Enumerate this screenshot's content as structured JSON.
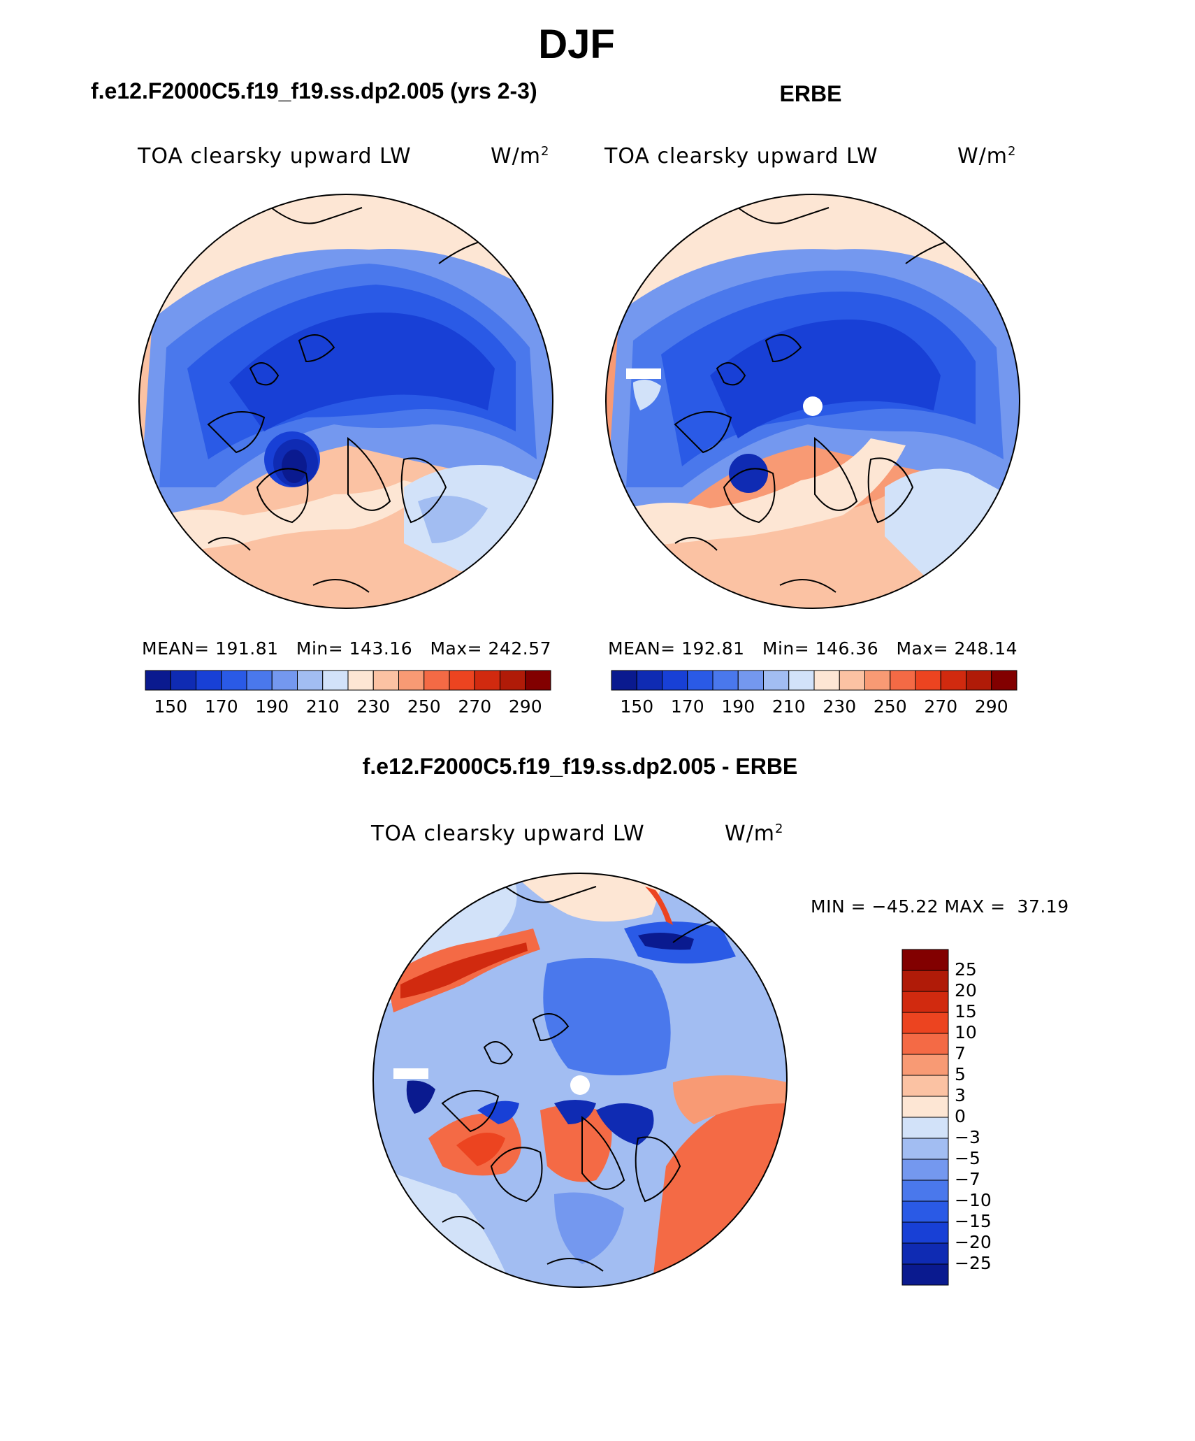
{
  "figure": {
    "season_title": "DJF",
    "diff_panel_title": "f.e12.F2000C5.f19_f19.ss.dp2.005 - ERBE"
  },
  "colors": {
    "abs_colorbar": [
      "#0a1a8f",
      "#0f2bb3",
      "#1840d6",
      "#2a5ae6",
      "#4a78ec",
      "#7498ef",
      "#a2bdf2",
      "#d2e2f9",
      "#fde6d4",
      "#fbc2a3",
      "#f89a74",
      "#f46a45",
      "#ec4420",
      "#d12a0f",
      "#b01b08",
      "#820000"
    ],
    "diff_colorbar": [
      "#0a1a8f",
      "#0f2bb3",
      "#1840d6",
      "#2a5ae6",
      "#4a78ec",
      "#7498ef",
      "#a2bdf2",
      "#d2e2f9",
      "#fde6d4",
      "#fbc2a3",
      "#f89a74",
      "#f46a45",
      "#ec4420",
      "#d12a0f",
      "#b01b08",
      "#820000"
    ]
  },
  "chart_data": [
    {
      "type": "heatmap",
      "projection": "north polar stereographic",
      "title": "f.e12.F2000C5.f19_f19.ss.dp2.005 (yrs 2-3)",
      "variable": "TOA clearsky upward LW",
      "units": "W/m",
      "units_sup": "2",
      "stats": {
        "mean": 191.81,
        "min": 143.16,
        "max": 242.57
      },
      "stats_text": "MEAN= 191.81   Min= 143.16   Max= 242.57",
      "colorbar_ticks": [
        "150",
        "170",
        "190",
        "210",
        "230",
        "250",
        "270",
        "290"
      ]
    },
    {
      "type": "heatmap",
      "projection": "north polar stereographic",
      "title": "ERBE",
      "variable": "TOA clearsky upward LW",
      "units": "W/m",
      "units_sup": "2",
      "stats": {
        "mean": 192.81,
        "min": 146.36,
        "max": 248.14
      },
      "stats_text": "MEAN= 192.81   Min= 146.36   Max= 248.14",
      "colorbar_ticks": [
        "150",
        "170",
        "190",
        "210",
        "230",
        "250",
        "270",
        "290"
      ]
    },
    {
      "type": "heatmap",
      "projection": "north polar stereographic",
      "title": "f.e12.F2000C5.f19_f19.ss.dp2.005 - ERBE",
      "variable": "TOA clearsky upward LW",
      "units": "W/m",
      "units_sup": "2",
      "stats": {
        "min": -45.22,
        "max": 37.19
      },
      "stats_text": "MIN = −45.22 MAX =  37.19",
      "colorbar_ticks": [
        "25",
        "20",
        "15",
        "10",
        "7",
        "5",
        "3",
        "0",
        "−3",
        "−5",
        "−7",
        "−10",
        "−15",
        "−20",
        "−25"
      ]
    }
  ]
}
